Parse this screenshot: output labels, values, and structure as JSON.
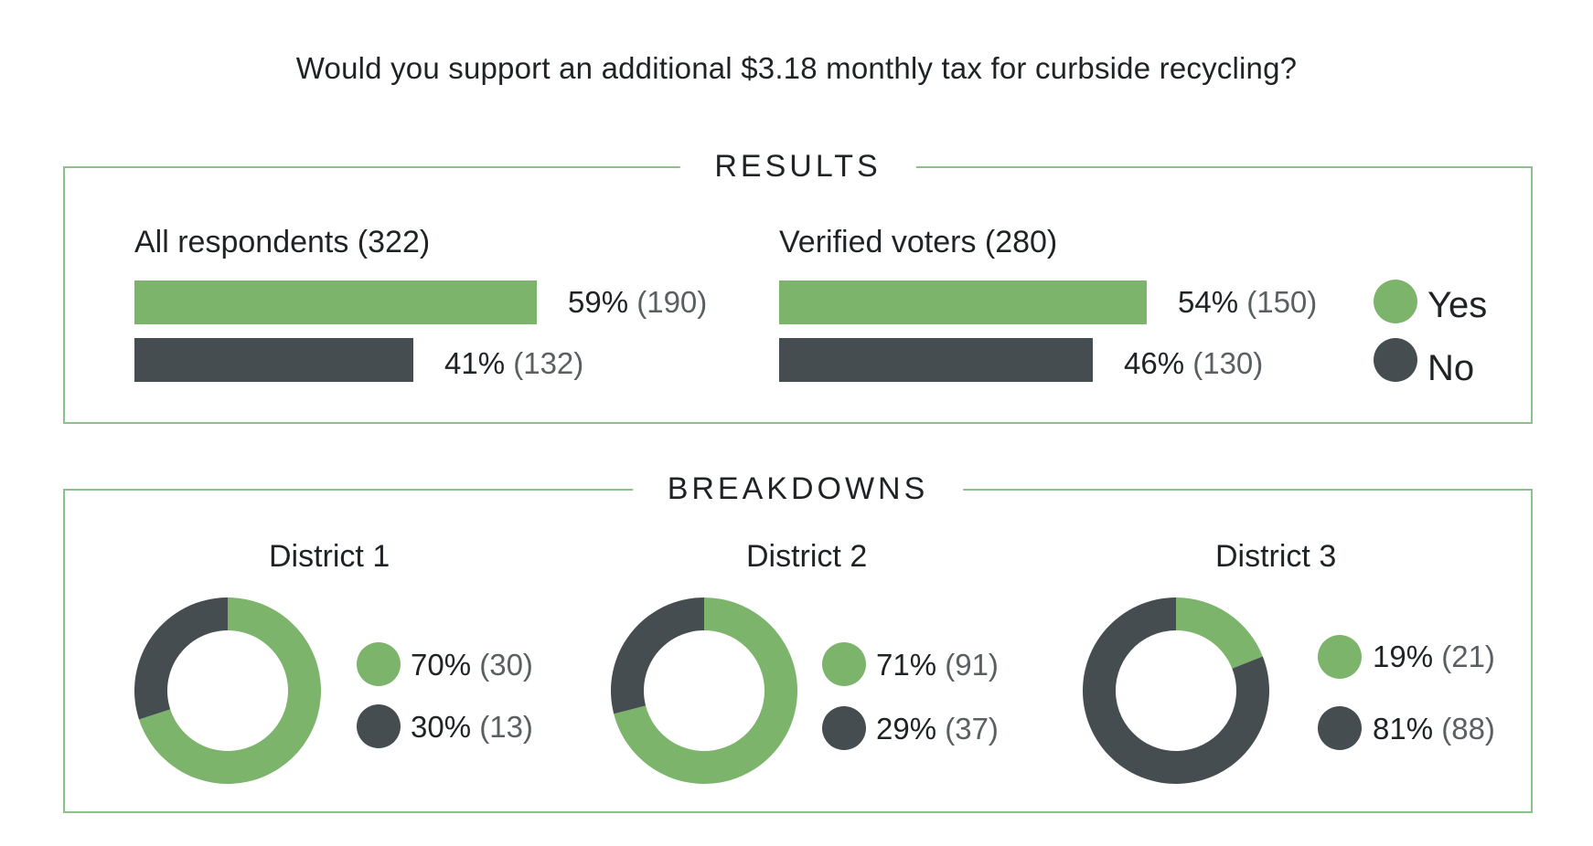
{
  "question": "Would you support an additional $3.18 monthly tax for curbside recycling?",
  "results": {
    "title": "RESULTS",
    "all": {
      "label": "All respondents (322)",
      "yes_pct": "59%",
      "yes_count": "(190)",
      "no_pct": "41%",
      "no_count": "(132)"
    },
    "verified": {
      "label": "Verified voters (280)",
      "yes_pct": "54%",
      "yes_count": "(150)",
      "no_pct": "46%",
      "no_count": "(130)"
    },
    "legend": {
      "yes": "Yes",
      "no": "No"
    }
  },
  "breakdowns": {
    "title": "BREAKDOWNS",
    "districts": [
      {
        "name": "District 1",
        "yes_pct": "70%",
        "yes_count": "(30)",
        "no_pct": "30%",
        "no_count": "(13)"
      },
      {
        "name": "District 2",
        "yes_pct": "71%",
        "yes_count": "(91)",
        "no_pct": "29%",
        "no_count": "(37)"
      },
      {
        "name": "District 3",
        "yes_pct": "19%",
        "yes_count": "(21)",
        "no_pct": "81%",
        "no_count": "(88)"
      }
    ]
  },
  "colors": {
    "yes": "#7db46c",
    "no": "#464d50",
    "frame": "#8dc18b"
  },
  "chart_data": [
    {
      "type": "bar",
      "title": "All respondents (322)",
      "categories": [
        "Yes",
        "No"
      ],
      "values": [
        59,
        41
      ],
      "counts": [
        190,
        132
      ]
    },
    {
      "type": "bar",
      "title": "Verified voters (280)",
      "categories": [
        "Yes",
        "No"
      ],
      "values": [
        54,
        46
      ],
      "counts": [
        150,
        130
      ]
    },
    {
      "type": "pie",
      "title": "District 1",
      "categories": [
        "Yes",
        "No"
      ],
      "values": [
        70,
        30
      ],
      "counts": [
        30,
        13
      ]
    },
    {
      "type": "pie",
      "title": "District 2",
      "categories": [
        "Yes",
        "No"
      ],
      "values": [
        71,
        29
      ],
      "counts": [
        91,
        37
      ]
    },
    {
      "type": "pie",
      "title": "District 3",
      "categories": [
        "Yes",
        "No"
      ],
      "values": [
        19,
        81
      ],
      "counts": [
        21,
        88
      ]
    }
  ]
}
